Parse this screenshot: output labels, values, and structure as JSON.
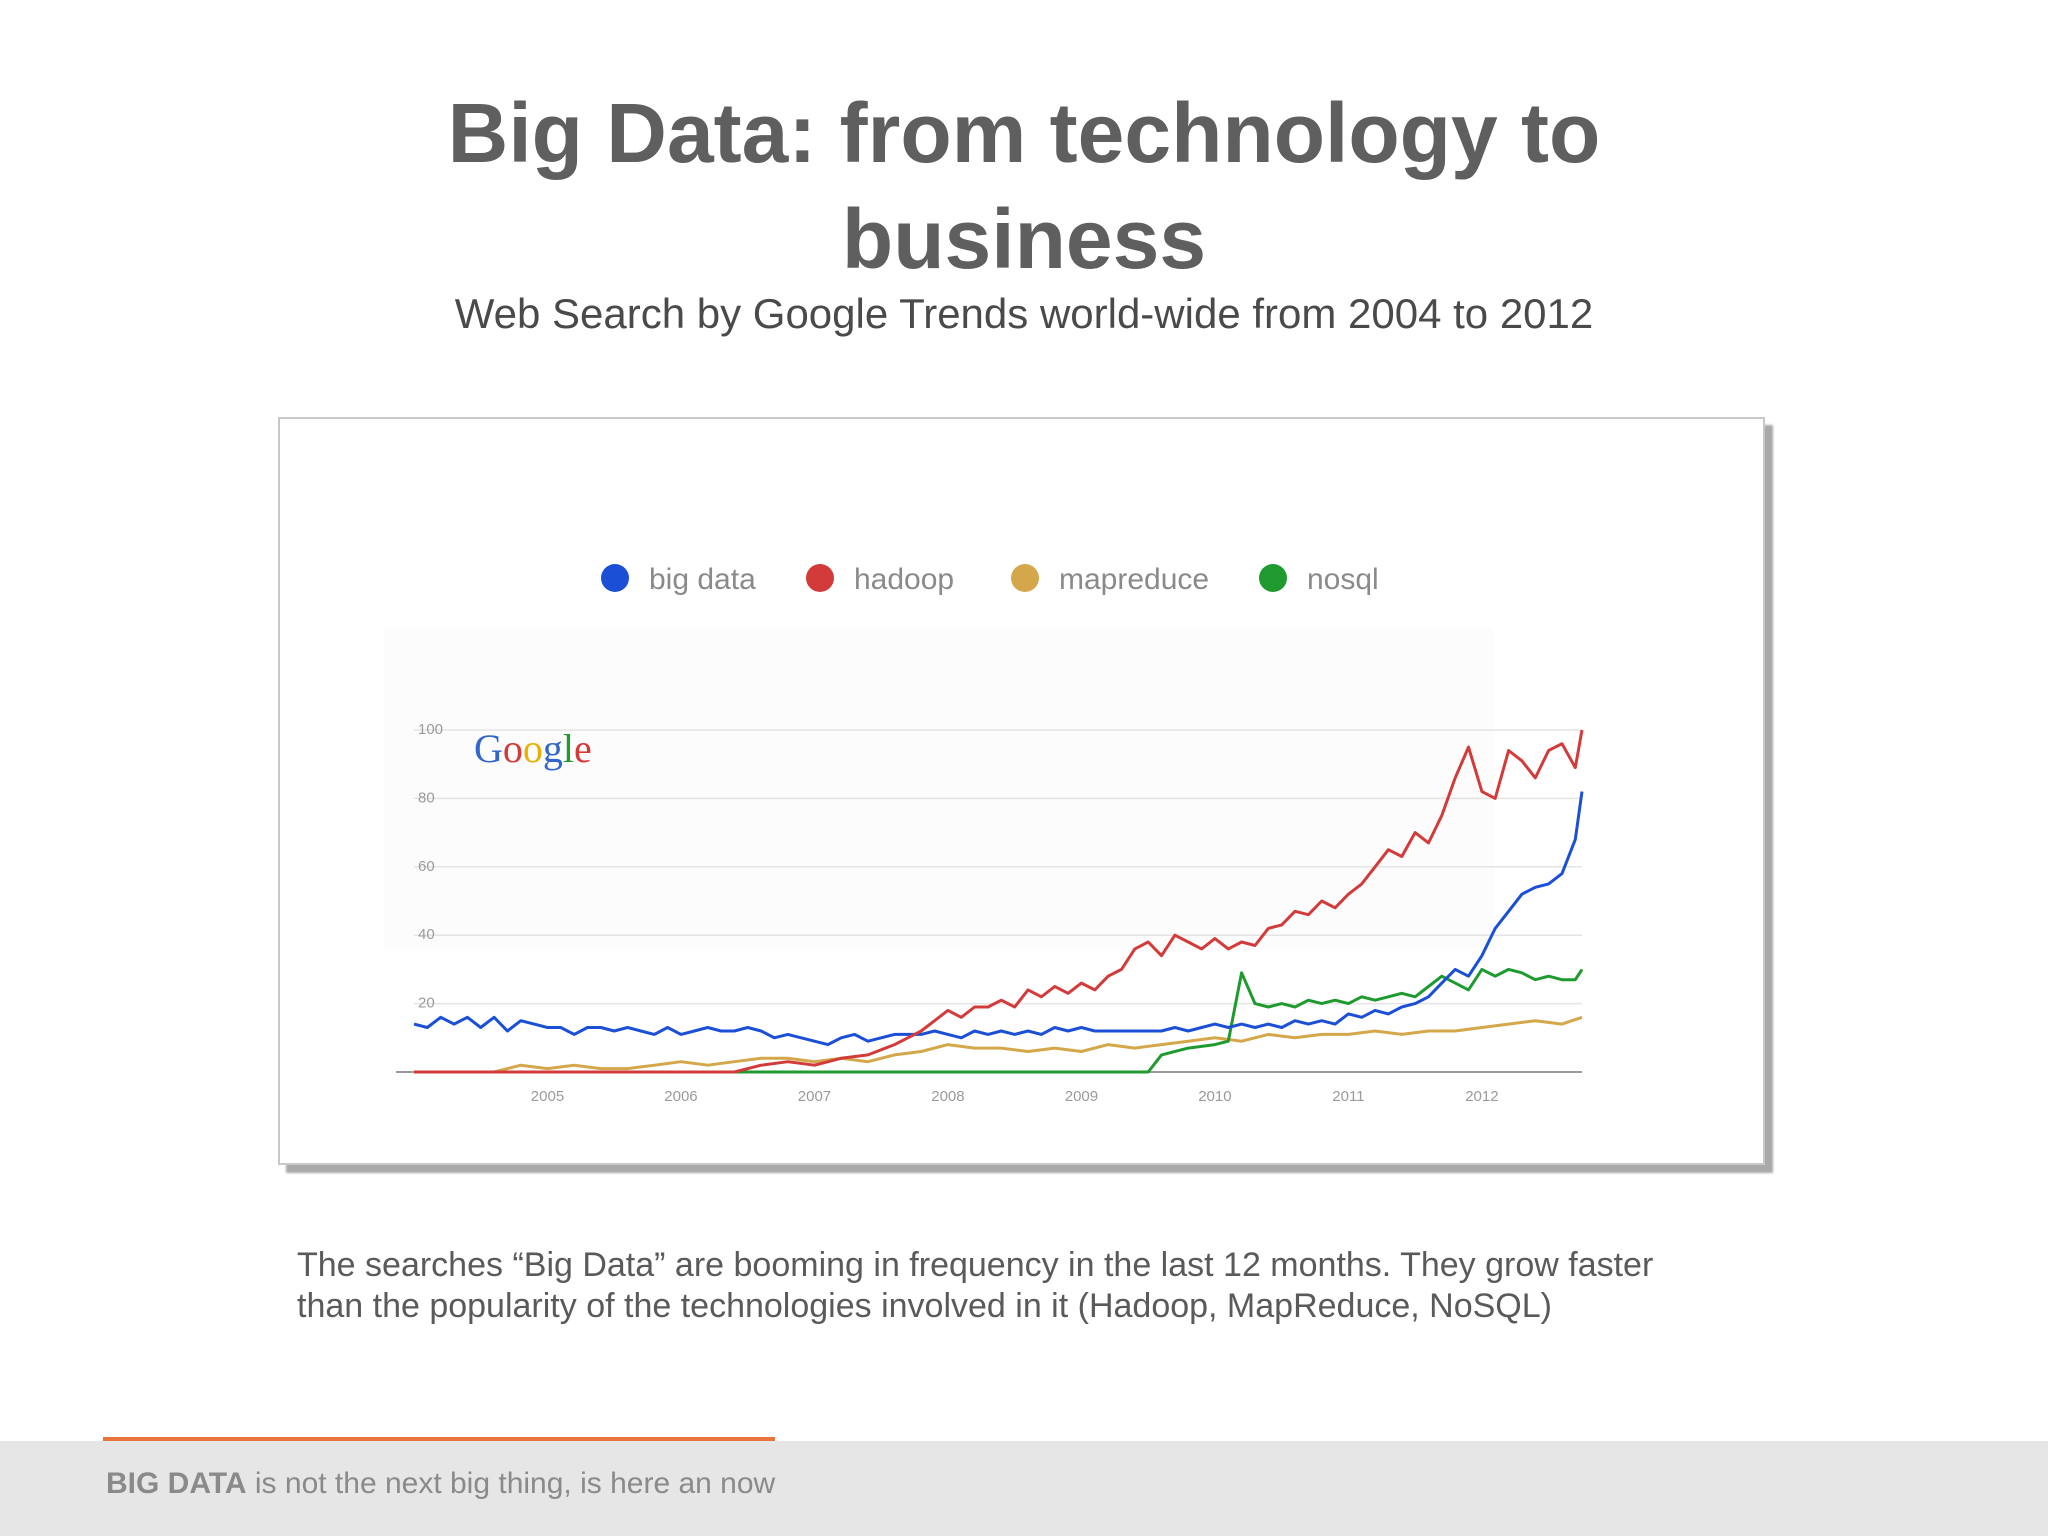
{
  "slide": {
    "title_line1": "Big Data: from technology to",
    "title_line2": "business",
    "subtitle": "Web Search by Google Trends world-wide from 2004 to 2012",
    "body_line1": "The searches “Big Data” are booming in frequency in the last 12 months. They grow faster",
    "body_line2": "than the popularity of the technologies involved in it (Hadoop, MapReduce, NoSQL)",
    "footer_bold": "BIG DATA",
    "footer_rest": " is not the next big thing, is here an now"
  },
  "colors": {
    "accent": "#e8743b",
    "big_data": "#1a4fd6",
    "hadoop": "#d33b3b",
    "mapreduce": "#d4a84a",
    "nosql": "#1f9a2f",
    "grid": "#e4e4e4",
    "axis": "#9a9a9a"
  },
  "chart_data": {
    "type": "line",
    "title": "",
    "xlabel": "",
    "ylabel": "",
    "logo": "Google",
    "xlim": [
      2004.0,
      2012.75
    ],
    "ylim": [
      0,
      100
    ],
    "yticks": [
      20,
      40,
      60,
      80,
      100
    ],
    "xticks": [
      2005,
      2006,
      2007,
      2008,
      2009,
      2010,
      2011,
      2012
    ],
    "grid": true,
    "legend_position": "top",
    "series": [
      {
        "name": "big data",
        "color": "#1a4fd6",
        "points": [
          [
            2004.0,
            14
          ],
          [
            2004.1,
            13
          ],
          [
            2004.2,
            16
          ],
          [
            2004.3,
            14
          ],
          [
            2004.4,
            16
          ],
          [
            2004.5,
            13
          ],
          [
            2004.6,
            16
          ],
          [
            2004.7,
            12
          ],
          [
            2004.8,
            15
          ],
          [
            2004.9,
            14
          ],
          [
            2005.0,
            13
          ],
          [
            2005.1,
            13
          ],
          [
            2005.2,
            11
          ],
          [
            2005.3,
            13
          ],
          [
            2005.4,
            13
          ],
          [
            2005.5,
            12
          ],
          [
            2005.6,
            13
          ],
          [
            2005.7,
            12
          ],
          [
            2005.8,
            11
          ],
          [
            2005.9,
            13
          ],
          [
            2006.0,
            11
          ],
          [
            2006.1,
            12
          ],
          [
            2006.2,
            13
          ],
          [
            2006.3,
            12
          ],
          [
            2006.4,
            12
          ],
          [
            2006.5,
            13
          ],
          [
            2006.6,
            12
          ],
          [
            2006.7,
            10
          ],
          [
            2006.8,
            11
          ],
          [
            2006.9,
            10
          ],
          [
            2007.0,
            9
          ],
          [
            2007.1,
            8
          ],
          [
            2007.2,
            10
          ],
          [
            2007.3,
            11
          ],
          [
            2007.4,
            9
          ],
          [
            2007.5,
            10
          ],
          [
            2007.6,
            11
          ],
          [
            2007.7,
            11
          ],
          [
            2007.8,
            11
          ],
          [
            2007.9,
            12
          ],
          [
            2008.0,
            11
          ],
          [
            2008.1,
            10
          ],
          [
            2008.2,
            12
          ],
          [
            2008.3,
            11
          ],
          [
            2008.4,
            12
          ],
          [
            2008.5,
            11
          ],
          [
            2008.6,
            12
          ],
          [
            2008.7,
            11
          ],
          [
            2008.8,
            13
          ],
          [
            2008.9,
            12
          ],
          [
            2009.0,
            13
          ],
          [
            2009.1,
            12
          ],
          [
            2009.2,
            12
          ],
          [
            2009.3,
            12
          ],
          [
            2009.4,
            12
          ],
          [
            2009.5,
            12
          ],
          [
            2009.6,
            12
          ],
          [
            2009.7,
            13
          ],
          [
            2009.8,
            12
          ],
          [
            2009.9,
            13
          ],
          [
            2010.0,
            14
          ],
          [
            2010.1,
            13
          ],
          [
            2010.2,
            14
          ],
          [
            2010.3,
            13
          ],
          [
            2010.4,
            14
          ],
          [
            2010.5,
            13
          ],
          [
            2010.6,
            15
          ],
          [
            2010.7,
            14
          ],
          [
            2010.8,
            15
          ],
          [
            2010.9,
            14
          ],
          [
            2011.0,
            17
          ],
          [
            2011.1,
            16
          ],
          [
            2011.2,
            18
          ],
          [
            2011.3,
            17
          ],
          [
            2011.4,
            19
          ],
          [
            2011.5,
            20
          ],
          [
            2011.6,
            22
          ],
          [
            2011.7,
            26
          ],
          [
            2011.8,
            30
          ],
          [
            2011.9,
            28
          ],
          [
            2012.0,
            34
          ],
          [
            2012.1,
            42
          ],
          [
            2012.2,
            47
          ],
          [
            2012.3,
            52
          ],
          [
            2012.4,
            54
          ],
          [
            2012.5,
            55
          ],
          [
            2012.6,
            58
          ],
          [
            2012.7,
            68
          ],
          [
            2012.75,
            82
          ]
        ]
      },
      {
        "name": "hadoop",
        "color": "#d33b3b",
        "points": [
          [
            2004.0,
            0
          ],
          [
            2006.4,
            0
          ],
          [
            2006.6,
            2
          ],
          [
            2006.8,
            3
          ],
          [
            2007.0,
            2
          ],
          [
            2007.2,
            4
          ],
          [
            2007.4,
            5
          ],
          [
            2007.6,
            8
          ],
          [
            2007.7,
            10
          ],
          [
            2007.8,
            12
          ],
          [
            2007.9,
            15
          ],
          [
            2008.0,
            18
          ],
          [
            2008.1,
            16
          ],
          [
            2008.2,
            19
          ],
          [
            2008.3,
            19
          ],
          [
            2008.4,
            21
          ],
          [
            2008.5,
            19
          ],
          [
            2008.6,
            24
          ],
          [
            2008.7,
            22
          ],
          [
            2008.8,
            25
          ],
          [
            2008.9,
            23
          ],
          [
            2009.0,
            26
          ],
          [
            2009.1,
            24
          ],
          [
            2009.2,
            28
          ],
          [
            2009.3,
            30
          ],
          [
            2009.4,
            36
          ],
          [
            2009.5,
            38
          ],
          [
            2009.6,
            34
          ],
          [
            2009.7,
            40
          ],
          [
            2009.8,
            38
          ],
          [
            2009.9,
            36
          ],
          [
            2010.0,
            39
          ],
          [
            2010.1,
            36
          ],
          [
            2010.2,
            38
          ],
          [
            2010.3,
            37
          ],
          [
            2010.4,
            42
          ],
          [
            2010.5,
            43
          ],
          [
            2010.6,
            47
          ],
          [
            2010.7,
            46
          ],
          [
            2010.8,
            50
          ],
          [
            2010.9,
            48
          ],
          [
            2011.0,
            52
          ],
          [
            2011.1,
            55
          ],
          [
            2011.2,
            60
          ],
          [
            2011.3,
            65
          ],
          [
            2011.4,
            63
          ],
          [
            2011.5,
            70
          ],
          [
            2011.6,
            67
          ],
          [
            2011.7,
            75
          ],
          [
            2011.8,
            86
          ],
          [
            2011.9,
            95
          ],
          [
            2012.0,
            82
          ],
          [
            2012.1,
            80
          ],
          [
            2012.2,
            94
          ],
          [
            2012.3,
            91
          ],
          [
            2012.4,
            86
          ],
          [
            2012.5,
            94
          ],
          [
            2012.6,
            96
          ],
          [
            2012.7,
            89
          ],
          [
            2012.75,
            100
          ]
        ]
      },
      {
        "name": "mapreduce",
        "color": "#d4a84a",
        "points": [
          [
            2004.0,
            0
          ],
          [
            2004.6,
            0
          ],
          [
            2004.8,
            2
          ],
          [
            2005.0,
            1
          ],
          [
            2005.2,
            2
          ],
          [
            2005.4,
            1
          ],
          [
            2005.6,
            1
          ],
          [
            2005.8,
            2
          ],
          [
            2006.0,
            3
          ],
          [
            2006.2,
            2
          ],
          [
            2006.4,
            3
          ],
          [
            2006.6,
            4
          ],
          [
            2006.8,
            4
          ],
          [
            2007.0,
            3
          ],
          [
            2007.2,
            4
          ],
          [
            2007.4,
            3
          ],
          [
            2007.6,
            5
          ],
          [
            2007.8,
            6
          ],
          [
            2008.0,
            8
          ],
          [
            2008.2,
            7
          ],
          [
            2008.4,
            7
          ],
          [
            2008.6,
            6
          ],
          [
            2008.8,
            7
          ],
          [
            2009.0,
            6
          ],
          [
            2009.2,
            8
          ],
          [
            2009.4,
            7
          ],
          [
            2009.6,
            8
          ],
          [
            2009.8,
            9
          ],
          [
            2010.0,
            10
          ],
          [
            2010.2,
            9
          ],
          [
            2010.4,
            11
          ],
          [
            2010.6,
            10
          ],
          [
            2010.8,
            11
          ],
          [
            2011.0,
            11
          ],
          [
            2011.2,
            12
          ],
          [
            2011.4,
            11
          ],
          [
            2011.6,
            12
          ],
          [
            2011.8,
            12
          ],
          [
            2012.0,
            13
          ],
          [
            2012.2,
            14
          ],
          [
            2012.4,
            15
          ],
          [
            2012.6,
            14
          ],
          [
            2012.75,
            16
          ]
        ]
      },
      {
        "name": "nosql",
        "color": "#1f9a2f",
        "points": [
          [
            2004.0,
            0
          ],
          [
            2009.5,
            0
          ],
          [
            2009.6,
            5
          ],
          [
            2009.8,
            7
          ],
          [
            2010.0,
            8
          ],
          [
            2010.1,
            9
          ],
          [
            2010.2,
            29
          ],
          [
            2010.3,
            20
          ],
          [
            2010.4,
            19
          ],
          [
            2010.5,
            20
          ],
          [
            2010.6,
            19
          ],
          [
            2010.7,
            21
          ],
          [
            2010.8,
            20
          ],
          [
            2010.9,
            21
          ],
          [
            2011.0,
            20
          ],
          [
            2011.1,
            22
          ],
          [
            2011.2,
            21
          ],
          [
            2011.3,
            22
          ],
          [
            2011.4,
            23
          ],
          [
            2011.5,
            22
          ],
          [
            2011.6,
            25
          ],
          [
            2011.7,
            28
          ],
          [
            2011.8,
            26
          ],
          [
            2011.9,
            24
          ],
          [
            2012.0,
            30
          ],
          [
            2012.1,
            28
          ],
          [
            2012.2,
            30
          ],
          [
            2012.3,
            29
          ],
          [
            2012.4,
            27
          ],
          [
            2012.5,
            28
          ],
          [
            2012.6,
            27
          ],
          [
            2012.7,
            27
          ],
          [
            2012.75,
            30
          ]
        ]
      }
    ]
  }
}
